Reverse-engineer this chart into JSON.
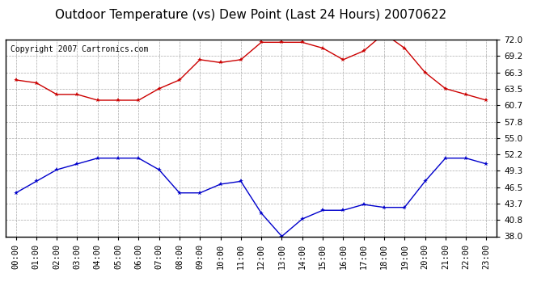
{
  "title": "Outdoor Temperature (vs) Dew Point (Last 24 Hours) 20070622",
  "copyright": "Copyright 2007 Cartronics.com",
  "hours": [
    "00:00",
    "01:00",
    "02:00",
    "03:00",
    "04:00",
    "05:00",
    "06:00",
    "07:00",
    "08:00",
    "09:00",
    "10:00",
    "11:00",
    "12:00",
    "13:00",
    "14:00",
    "15:00",
    "16:00",
    "17:00",
    "18:00",
    "19:00",
    "20:00",
    "21:00",
    "22:00",
    "23:00"
  ],
  "temp": [
    65.0,
    64.5,
    62.5,
    62.5,
    61.5,
    61.5,
    61.5,
    63.5,
    65.0,
    68.5,
    68.0,
    68.5,
    71.5,
    71.5,
    71.5,
    70.5,
    68.5,
    70.0,
    73.0,
    70.5,
    66.3,
    63.5,
    62.5,
    61.5
  ],
  "dewpoint": [
    45.5,
    47.5,
    49.5,
    50.5,
    51.5,
    51.5,
    51.5,
    49.5,
    45.5,
    45.5,
    47.0,
    47.5,
    42.0,
    38.0,
    41.0,
    42.5,
    42.5,
    43.5,
    43.0,
    43.0,
    47.5,
    51.5,
    51.5,
    50.5
  ],
  "temp_color": "#cc0000",
  "dew_color": "#0000cc",
  "bg_color": "#ffffff",
  "plot_bg_color": "#ffffff",
  "grid_color": "#aaaaaa",
  "ylim_min": 38.0,
  "ylim_max": 72.0,
  "yticks": [
    38.0,
    40.8,
    43.7,
    46.5,
    49.3,
    52.2,
    55.0,
    57.8,
    60.7,
    63.5,
    66.3,
    69.2,
    72.0
  ],
  "title_fontsize": 11,
  "copyright_fontsize": 7,
  "tick_fontsize": 7.5
}
